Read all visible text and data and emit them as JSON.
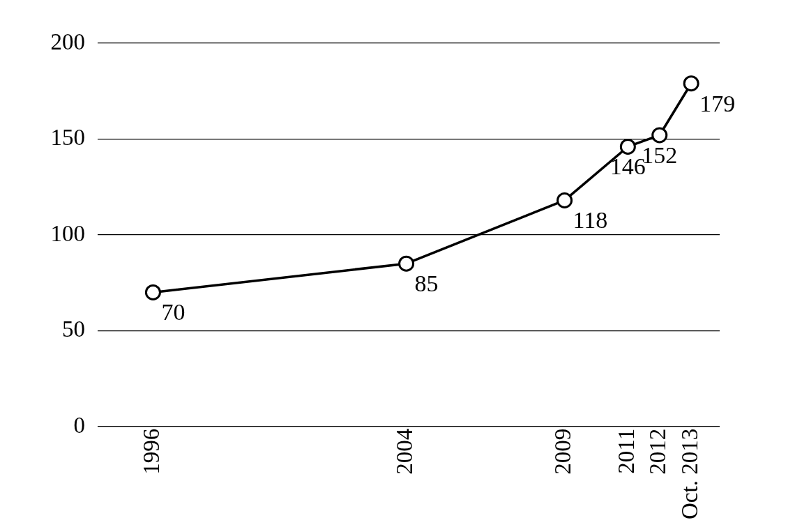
{
  "chart_data": {
    "type": "line",
    "x": [
      1996,
      2004,
      2009,
      2011,
      2012,
      2013
    ],
    "series": [
      {
        "color": "#000000",
        "values": [
          70,
          85,
          118,
          146,
          152,
          179
        ]
      }
    ],
    "xlim": [
      1994.25,
      2013.9
    ],
    "xticks": [
      1996,
      2004,
      2009,
      2011,
      2012,
      {
        "value": 2013,
        "label": "Oct. 2013"
      }
    ],
    "ylim": [
      0,
      200
    ],
    "yticks": [
      0,
      50,
      100,
      150,
      200
    ],
    "grid": "y",
    "marker": "circle",
    "line_style": "solid",
    "data_labels": true
  }
}
